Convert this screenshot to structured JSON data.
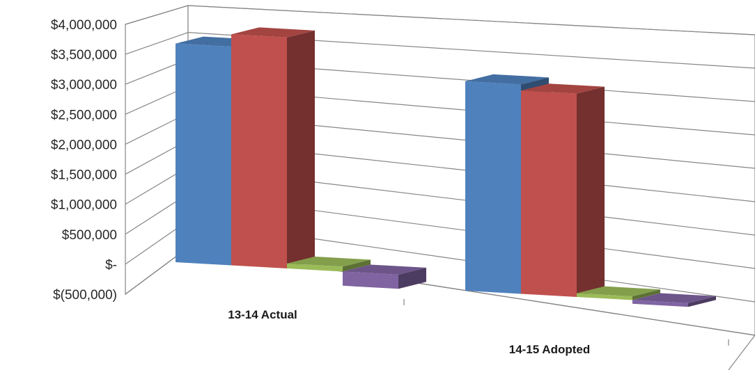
{
  "chart_data": {
    "type": "bar",
    "subtype": "3d-clustered-column",
    "title": "",
    "xlabel": "",
    "ylabel": "",
    "categories": [
      "13-14 Actual",
      "14-15 Adopted"
    ],
    "y_ticks": [
      "$(500,000)",
      "$-",
      "$500,000",
      "$1,000,000",
      "$1,500,000",
      "$2,000,000",
      "$2,500,000",
      "$3,000,000",
      "$3,500,000",
      "$4,000,000"
    ],
    "ylim": [
      -500000,
      4000000
    ],
    "grid": true,
    "legend": "none",
    "series": [
      {
        "color": "#4F81BD",
        "values": [
          3550000,
          3400000
        ]
      },
      {
        "color": "#C0504D",
        "values": [
          3750000,
          3300000
        ]
      },
      {
        "color": "#9BBB59",
        "values": [
          80000,
          60000
        ]
      },
      {
        "color": "#8064A2",
        "values": [
          -230000,
          -60000
        ]
      }
    ]
  }
}
